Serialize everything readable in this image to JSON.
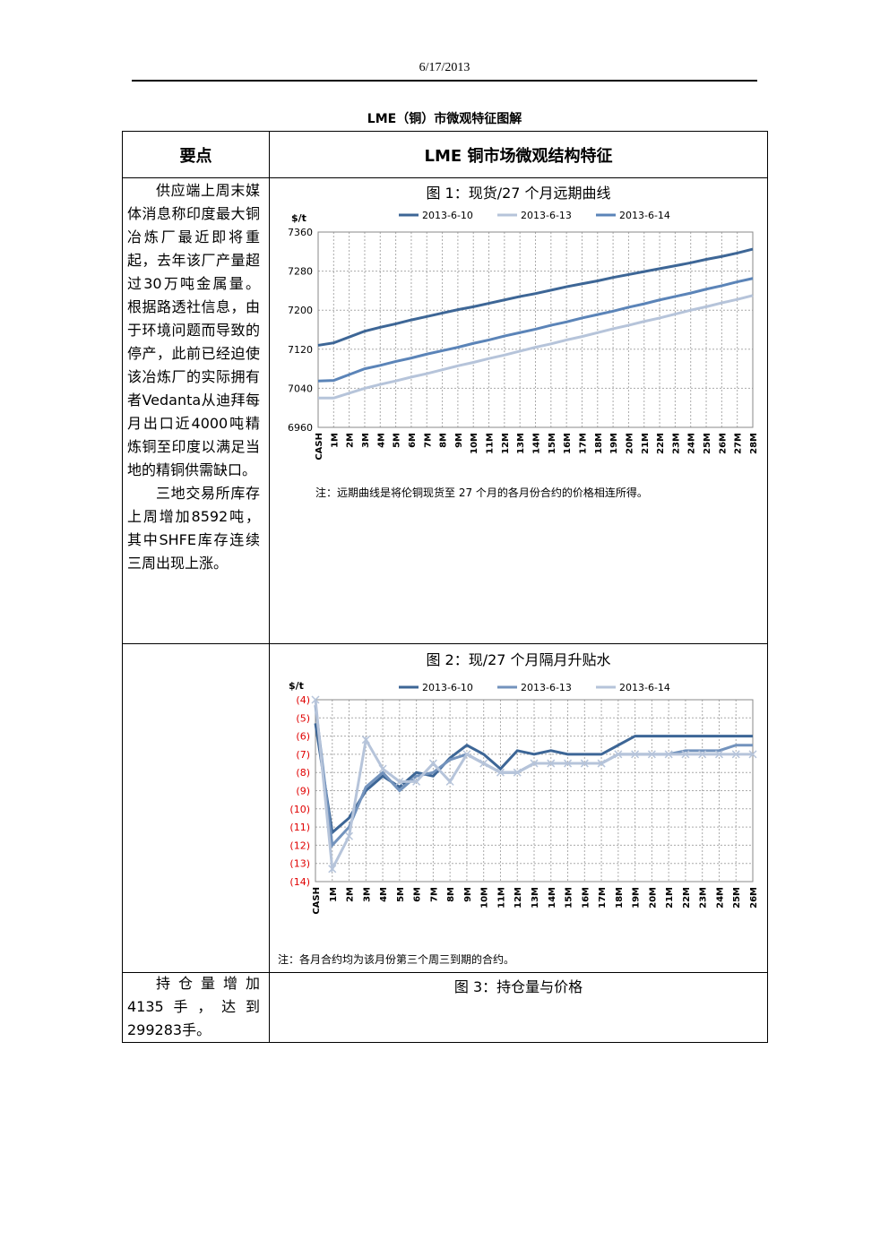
{
  "header": {
    "date": "6/17/2013"
  },
  "title": "LME（铜）市微观特征图解",
  "table": {
    "headers": [
      "要点",
      "LME 铜市场微观结构特征"
    ],
    "rows": [
      {
        "points": [
          "供应端上周末媒体消息称印度最大铜冶炼厂最近即将重起，去年该厂产量超过30万吨金属量。根据路透社信息，由于环境问题而导致的停产，此前已经迫使该冶炼厂的实际拥有者Vedanta从迪拜每月出口近4000吨精炼铜至印度以满足当地的精铜供需缺口。",
          "三地交易所库存上周增加8592吨，其中SHFE库存连续三周出现上涨。"
        ]
      },
      {
        "points": [
          "持仓量增加4135手，达到299283手。"
        ],
        "figure_title": "图 3：持仓量与价格"
      }
    ]
  },
  "chart_data": [
    {
      "type": "line",
      "title": "图 1：现货/27 个月远期曲线",
      "y_label": "$/t",
      "note": "注：远期曲线是将伦铜现货至 27 个月的各月份合约的价格相连所得。",
      "categories": [
        "CASH",
        "1M",
        "2M",
        "3M",
        "4M",
        "5M",
        "6M",
        "7M",
        "8M",
        "9M",
        "10M",
        "11M",
        "12M",
        "13M",
        "14M",
        "15M",
        "16M",
        "17M",
        "18M",
        "19M",
        "20M",
        "21M",
        "22M",
        "23M",
        "24M",
        "25M",
        "26M",
        "27M",
        "28M"
      ],
      "ylim": [
        6960,
        7360
      ],
      "yticks": [
        6960,
        7040,
        7120,
        7200,
        7280,
        7360
      ],
      "grid": true,
      "tick_color": "#000000",
      "series": [
        {
          "name": "2013-6-10",
          "color": "#3d6696",
          "values": [
            7128,
            7133,
            7145,
            7157,
            7165,
            7172,
            7180,
            7187,
            7194,
            7201,
            7207,
            7214,
            7221,
            7228,
            7234,
            7241,
            7248,
            7254,
            7260,
            7267,
            7273,
            7279,
            7285,
            7291,
            7297,
            7304,
            7310,
            7317,
            7325
          ]
        },
        {
          "name": "2013-6-13",
          "color": "#b6c4da",
          "values": [
            7020,
            7020,
            7030,
            7040,
            7048,
            7055,
            7063,
            7070,
            7078,
            7086,
            7093,
            7101,
            7108,
            7116,
            7124,
            7131,
            7139,
            7146,
            7154,
            7162,
            7169,
            7177,
            7184,
            7192,
            7200,
            7207,
            7215,
            7222,
            7230
          ]
        },
        {
          "name": "2013-6-14",
          "color": "#5b84b8",
          "values": [
            7055,
            7056,
            7068,
            7080,
            7087,
            7095,
            7102,
            7110,
            7117,
            7124,
            7132,
            7139,
            7147,
            7154,
            7161,
            7169,
            7176,
            7184,
            7191,
            7198,
            7206,
            7213,
            7221,
            7228,
            7235,
            7243,
            7250,
            7258,
            7265
          ]
        }
      ]
    },
    {
      "type": "line",
      "title": "图 2：现/27 个月隔月升贴水",
      "y_label": "$/t",
      "note": "注：各月合约均为该月份第三个周三到期的合约。",
      "categories": [
        "CASH",
        "1M",
        "2M",
        "3M",
        "4M",
        "5M",
        "6M",
        "7M",
        "8M",
        "9M",
        "10M",
        "11M",
        "12M",
        "13M",
        "14M",
        "15M",
        "16M",
        "17M",
        "18M",
        "19M",
        "20M",
        "21M",
        "22M",
        "23M",
        "24M",
        "25M",
        "26M"
      ],
      "ylim": [
        -14,
        -4
      ],
      "grid": true,
      "tick_color": "#e00000",
      "yticks": [
        {
          "value": -4,
          "label": "(4)"
        },
        {
          "value": -5,
          "label": "(5)"
        },
        {
          "value": -6,
          "label": "(6)"
        },
        {
          "value": -7,
          "label": "(7)"
        },
        {
          "value": -8,
          "label": "(8)"
        },
        {
          "value": -9,
          "label": "(9)"
        },
        {
          "value": -10,
          "label": "(10)"
        },
        {
          "value": -11,
          "label": "(11)"
        },
        {
          "value": -12,
          "label": "(12)"
        },
        {
          "value": -13,
          "label": "(13)"
        },
        {
          "value": -14,
          "label": "(14)"
        }
      ],
      "series": [
        {
          "name": "2013-6-10",
          "color": "#3d6696",
          "values": [
            -5.3,
            -11.3,
            -10.5,
            -9,
            -8.2,
            -8.8,
            -8,
            -8.2,
            -7.2,
            -6.5,
            -7,
            -7.8,
            -6.8,
            -7,
            -6.8,
            -7,
            -7,
            -7,
            -6.5,
            -6,
            -6,
            -6,
            -6,
            -6,
            -6,
            -6,
            -6
          ]
        },
        {
          "name": "2013-6-13",
          "color": "#7393bd",
          "values": [
            -4.3,
            -12,
            -11,
            -8.8,
            -8,
            -9,
            -8.2,
            -8,
            -7.3,
            -7,
            -7.5,
            -8,
            -8,
            -7.5,
            -7.5,
            -7.5,
            -7.5,
            -7.5,
            -7,
            -7,
            -7,
            -7,
            -6.8,
            -6.8,
            -6.8,
            -6.5,
            -6.5
          ]
        },
        {
          "name": "2013-6-14",
          "color": "#b6c4da",
          "marker": "x",
          "values": [
            -4,
            -13.3,
            -11.5,
            -6.2,
            -7.8,
            -8.5,
            -8.5,
            -7.5,
            -8.5,
            -7,
            -7.5,
            -8,
            -8,
            -7.5,
            -7.5,
            -7.5,
            -7.5,
            -7.5,
            -7,
            -7,
            -7,
            -7,
            -7,
            -7,
            -7,
            -7,
            -7
          ]
        }
      ]
    }
  ]
}
